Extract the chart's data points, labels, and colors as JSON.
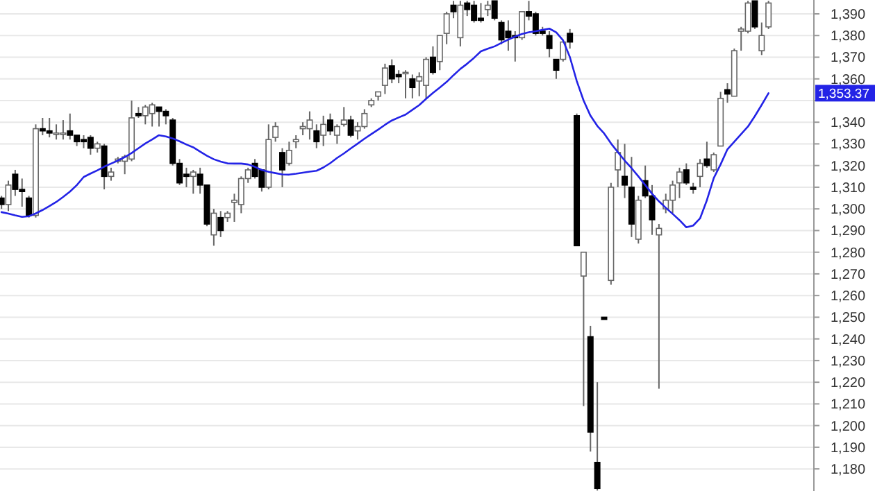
{
  "chart_data": {
    "type": "candlestick",
    "categories": [
      null,
      null,
      null,
      null,
      null,
      null,
      null,
      null,
      null,
      null,
      null,
      null,
      null,
      null,
      null,
      null,
      null,
      null,
      null,
      null,
      null,
      null,
      null,
      null,
      null,
      null,
      null,
      null,
      null,
      null,
      null,
      null,
      null,
      null,
      null,
      null,
      null,
      null,
      null,
      null,
      null,
      null,
      null,
      null,
      null,
      null,
      null,
      null,
      null,
      null,
      null,
      null,
      null,
      null,
      null,
      null,
      null,
      null,
      null,
      null,
      null,
      null,
      null,
      null,
      null,
      null,
      null,
      null,
      null,
      null,
      null,
      null,
      null,
      null,
      null,
      null,
      null,
      null,
      null,
      null,
      null,
      null,
      null,
      null,
      null,
      null,
      null,
      null,
      null,
      null,
      null,
      null,
      null,
      null,
      null,
      null,
      null,
      null,
      null,
      null,
      null,
      null,
      null,
      null,
      null,
      null,
      null,
      null,
      null,
      null,
      null,
      null,
      null
    ],
    "series": [
      {
        "colors": [
          "#000000",
          "#ffffff",
          "#000000",
          "#000000",
          "#000000",
          "#ffffff",
          "#000000",
          "#000000",
          "#ffffff",
          "#ffffff",
          "#000000",
          "#000000",
          "#000000",
          "#000000",
          "#ffffff",
          "#000000",
          "#ffffff",
          "#ffffff",
          "#ffffff",
          "#ffffff",
          "#000000",
          "#ffffff",
          "#ffffff",
          "#000000",
          "#000000",
          "#000000",
          "#000000",
          "#000000",
          "#ffffff",
          "#000000",
          "#000000",
          "#ffffff",
          "#000000",
          "#ffffff",
          "#ffffff",
          "#ffffff",
          "#ffffff",
          "#000000",
          "#000000",
          "#ffffff",
          "#ffffff",
          "#000000",
          "#ffffff",
          "#ffffff",
          "#ffffff",
          "#ffffff",
          "#000000",
          "#ffffff",
          "#000000",
          "#ffffff",
          "#ffffff",
          "#000000",
          "#ffffff",
          "#ffffff",
          "#ffffff",
          "#ffffff",
          "#ffffff",
          "#000000",
          "#000000",
          "#ffffff",
          "#000000",
          "#ffffff",
          "#ffffff",
          "#000000",
          "#ffffff",
          "#ffffff",
          "#000000",
          "#ffffff",
          "#000000",
          "#000000",
          "#000000",
          "#ffffff",
          "#000000",
          "#000000",
          "#000000",
          "#000000",
          "#ffffff",
          "#000000",
          "#000000",
          "#000000",
          "#000000",
          "#000000",
          "#ffffff",
          "#000000",
          "#000000",
          "#ffffff",
          "#000000",
          "#000000",
          "#000000",
          "#ffffff",
          "#ffffff",
          "#000000",
          "#000000",
          "#ffffff",
          "#000000",
          "#000000",
          "#ffffff",
          "#ffffff",
          "#ffffff",
          "#ffffff",
          "#000000",
          "#000000",
          "#ffffff",
          "#000000",
          "#ffffff",
          "#ffffff",
          "#000000",
          "#ffffff",
          "#ffffff",
          "#ffffff",
          "#000000",
          "#ffffff",
          "#ffffff"
        ],
        "ohlc": [
          [
            1305,
            1306,
            1300,
            1302
          ],
          [
            1302,
            1313,
            1299,
            1311
          ],
          [
            1316,
            1318,
            1306,
            1309
          ],
          [
            1309,
            1314,
            1301,
            1308
          ],
          [
            1305,
            1306,
            1296,
            1297
          ],
          [
            1297,
            1339,
            1296,
            1337
          ],
          [
            1337,
            1342,
            1334,
            1336
          ],
          [
            1336,
            1342,
            1333,
            1335
          ],
          [
            1335,
            1339,
            1332,
            1335
          ],
          [
            1335,
            1341,
            1332,
            1335
          ],
          [
            1336,
            1344,
            1332,
            1334
          ],
          [
            1334,
            1334,
            1329,
            1331
          ],
          [
            1332,
            1334,
            1328,
            1331
          ],
          [
            1333,
            1334,
            1325,
            1328
          ],
          [
            1328,
            1331,
            1326,
            1330
          ],
          [
            1329,
            1330,
            1309,
            1315
          ],
          [
            1315,
            1319,
            1313,
            1317
          ],
          [
            1322,
            1324,
            1321,
            1323
          ],
          [
            1322,
            1325,
            1316,
            1324
          ],
          [
            1323,
            1350,
            1322,
            1342
          ],
          [
            1344,
            1347,
            1342,
            1343
          ],
          [
            1343,
            1348,
            1339,
            1347
          ],
          [
            1344,
            1349,
            1338,
            1348
          ],
          [
            1347,
            1347,
            1338,
            1345
          ],
          [
            1345,
            1346,
            1339,
            1343
          ],
          [
            1341,
            1342,
            1320,
            1321
          ],
          [
            1321,
            1323,
            1311,
            1312
          ],
          [
            1316,
            1319,
            1310,
            1315
          ],
          [
            1315,
            1318,
            1307,
            1317
          ],
          [
            1316,
            1319,
            1307,
            1311
          ],
          [
            1311,
            1311,
            1292,
            1293
          ],
          [
            1288,
            1300,
            1283,
            1298
          ],
          [
            1296,
            1299,
            1287,
            1290
          ],
          [
            1296,
            1299,
            1294,
            1298
          ],
          [
            1303,
            1307,
            1294,
            1304
          ],
          [
            1302,
            1315,
            1298,
            1314
          ],
          [
            1314,
            1319,
            1312,
            1318
          ],
          [
            1321,
            1323,
            1314,
            1315
          ],
          [
            1318,
            1318,
            1308,
            1310
          ],
          [
            1310,
            1339,
            1309,
            1332
          ],
          [
            1333,
            1340,
            1331,
            1338
          ],
          [
            1326,
            1328,
            1310,
            1318
          ],
          [
            1321,
            1331,
            1320,
            1327
          ],
          [
            1331,
            1334,
            1328,
            1332
          ],
          [
            1337,
            1340,
            1334,
            1338
          ],
          [
            1337,
            1345,
            1332,
            1341
          ],
          [
            1336,
            1339,
            1328,
            1331
          ],
          [
            1334,
            1343,
            1329,
            1339
          ],
          [
            1341,
            1344,
            1334,
            1336
          ],
          [
            1334,
            1339,
            1330,
            1338
          ],
          [
            1339,
            1347,
            1338,
            1341
          ],
          [
            1341,
            1343,
            1333,
            1334
          ],
          [
            1336,
            1340,
            1332,
            1338
          ],
          [
            1338,
            1346,
            1337,
            1344
          ],
          [
            1348,
            1351,
            1347,
            1350
          ],
          [
            1352,
            1354,
            1350,
            1354
          ],
          [
            1357,
            1367,
            1353,
            1365
          ],
          [
            1366,
            1369,
            1358,
            1360
          ],
          [
            1362,
            1364,
            1358,
            1361
          ],
          [
            1363,
            1364,
            1351,
            1363
          ],
          [
            1360,
            1362,
            1351,
            1356
          ],
          [
            1359,
            1363,
            1352,
            1361
          ],
          [
            1357,
            1370,
            1351,
            1369
          ],
          [
            1370,
            1375,
            1362,
            1363
          ],
          [
            1368,
            1380,
            1364,
            1380
          ],
          [
            1381,
            1391,
            1376,
            1390
          ],
          [
            1394,
            1396,
            1388,
            1391
          ],
          [
            1379,
            1396,
            1375,
            1394
          ],
          [
            1395,
            1396,
            1389,
            1392
          ],
          [
            1394,
            1396,
            1386,
            1387
          ],
          [
            1388,
            1395,
            1386,
            1387
          ],
          [
            1392,
            1396,
            1389,
            1394
          ],
          [
            1396,
            1396,
            1387,
            1388
          ],
          [
            1386,
            1387,
            1376,
            1378
          ],
          [
            1382,
            1387,
            1373,
            1379
          ],
          [
            1380,
            1382,
            1368,
            1379
          ],
          [
            1379,
            1391,
            1378,
            1391
          ],
          [
            1391,
            1396,
            1387,
            1389
          ],
          [
            1390,
            1391,
            1380,
            1381
          ],
          [
            1382,
            1384,
            1380,
            1381
          ],
          [
            1380,
            1382,
            1370,
            1374
          ],
          [
            1369,
            1369,
            1360,
            1364
          ],
          [
            1369,
            1378,
            1368,
            1377
          ],
          [
            1381,
            1383,
            1374,
            1377
          ],
          [
            1343,
            1344,
            1283,
            1283
          ],
          [
            1269,
            1280,
            1209,
            1280
          ],
          [
            1241,
            1246,
            1188,
            1197
          ],
          [
            1183,
            1220,
            1170,
            1171
          ],
          [
            1250,
            1250,
            1249,
            1249
          ],
          [
            1267,
            1312,
            1265,
            1310
          ],
          [
            1318,
            1332,
            1310,
            1326
          ],
          [
            1315,
            1330,
            1305,
            1311
          ],
          [
            1310,
            1324,
            1287,
            1293
          ],
          [
            1286,
            1306,
            1284,
            1304
          ],
          [
            1313,
            1320,
            1305,
            1306
          ],
          [
            1306,
            1311,
            1288,
            1295
          ],
          [
            1288,
            1293,
            1217,
            1291
          ],
          [
            1300,
            1307,
            1298,
            1304
          ],
          [
            1304,
            1313,
            1298,
            1311
          ],
          [
            1312,
            1319,
            1305,
            1317
          ],
          [
            1318,
            1321,
            1311,
            1312
          ],
          [
            1310,
            1312,
            1307,
            1309
          ],
          [
            1315,
            1323,
            1310,
            1321
          ],
          [
            1323,
            1331,
            1319,
            1320
          ],
          [
            1318,
            1326,
            1317,
            1325
          ],
          [
            1329,
            1354,
            1329,
            1351
          ],
          [
            1355,
            1358,
            1349,
            1353
          ],
          [
            1352,
            1374,
            1352,
            1373
          ],
          [
            1382,
            1384,
            1373,
            1383
          ],
          [
            1382,
            1396,
            1381,
            1395
          ],
          [
            1396,
            1396,
            1383,
            1384
          ],
          [
            1373,
            1386,
            1371,
            1380
          ],
          [
            1384,
            1396,
            1383,
            1395
          ]
        ]
      },
      {
        "type": "line",
        "color": "#2323e6",
        "values": [
          1298.5,
          1297.8,
          1297,
          1296.3,
          1296.6,
          1297.9,
          1299.5,
          1301.3,
          1303.2,
          1305.5,
          1308,
          1311,
          1314.7,
          1316.3,
          1317.8,
          1319.5,
          1320.9,
          1322.3,
          1323.9,
          1325.8,
          1328,
          1330.2,
          1332,
          1334,
          1333.4,
          1332.5,
          1331.2,
          1329.7,
          1328.4,
          1326.4,
          1324.5,
          1322.9,
          1321.8,
          1321,
          1320.9,
          1320.9,
          1320.5,
          1319.4,
          1318,
          1317.1,
          1316.5,
          1315.9,
          1315.8,
          1316.2,
          1316.7,
          1317.2,
          1317.6,
          1319.1,
          1321.1,
          1323.5,
          1325.6,
          1327.9,
          1330.1,
          1332.4,
          1334.5,
          1336.6,
          1338.8,
          1340.8,
          1342.2,
          1343.5,
          1345.7,
          1347.9,
          1350.8,
          1353.5,
          1356,
          1358.6,
          1361.7,
          1364.6,
          1367,
          1369.7,
          1372.7,
          1373.9,
          1375,
          1376.6,
          1378.1,
          1379.5,
          1380.7,
          1381.5,
          1382,
          1382.6,
          1383.2,
          1381.5,
          1377.8,
          1370,
          1359,
          1350,
          1343,
          1338.3,
          1334.8,
          1330.2,
          1326.2,
          1322.3,
          1318.8,
          1315,
          1311,
          1307,
          1303.5,
          1300.5,
          1297.7,
          1294.8,
          1291.5,
          1292.3,
          1295.6,
          1304,
          1314.2,
          1320.5,
          1327.5,
          1331,
          1334.5,
          1338,
          1342.8,
          1348,
          1353.4
        ]
      }
    ],
    "ylim": [
      1169.8,
      1396.4
    ],
    "yticks": [
      {
        "value": 1180,
        "label": "1,180"
      },
      {
        "value": 1190,
        "label": "1,190"
      },
      {
        "value": 1200,
        "label": "1,200"
      },
      {
        "value": 1210,
        "label": "1,210"
      },
      {
        "value": 1220,
        "label": "1,220"
      },
      {
        "value": 1230,
        "label": "1,230"
      },
      {
        "value": 1240,
        "label": "1,240"
      },
      {
        "value": 1250,
        "label": "1,250"
      },
      {
        "value": 1260,
        "label": "1,260"
      },
      {
        "value": 1270,
        "label": "1,270"
      },
      {
        "value": 1280,
        "label": "1,280"
      },
      {
        "value": 1290,
        "label": "1,290"
      },
      {
        "value": 1300,
        "label": "1,300"
      },
      {
        "value": 1310,
        "label": "1,310"
      },
      {
        "value": 1320,
        "label": "1,320"
      },
      {
        "value": 1330,
        "label": "1,330"
      },
      {
        "value": 1340,
        "label": "1,340"
      },
      {
        "value": 1350,
        "label": null
      },
      {
        "value": 1360,
        "label": "1,360"
      },
      {
        "value": 1370,
        "label": "1,370"
      },
      {
        "value": 1380,
        "label": "1,380"
      },
      {
        "value": 1390,
        "label": "1,390"
      }
    ],
    "grid": "y",
    "annotations": [
      "1,353.37"
    ]
  }
}
